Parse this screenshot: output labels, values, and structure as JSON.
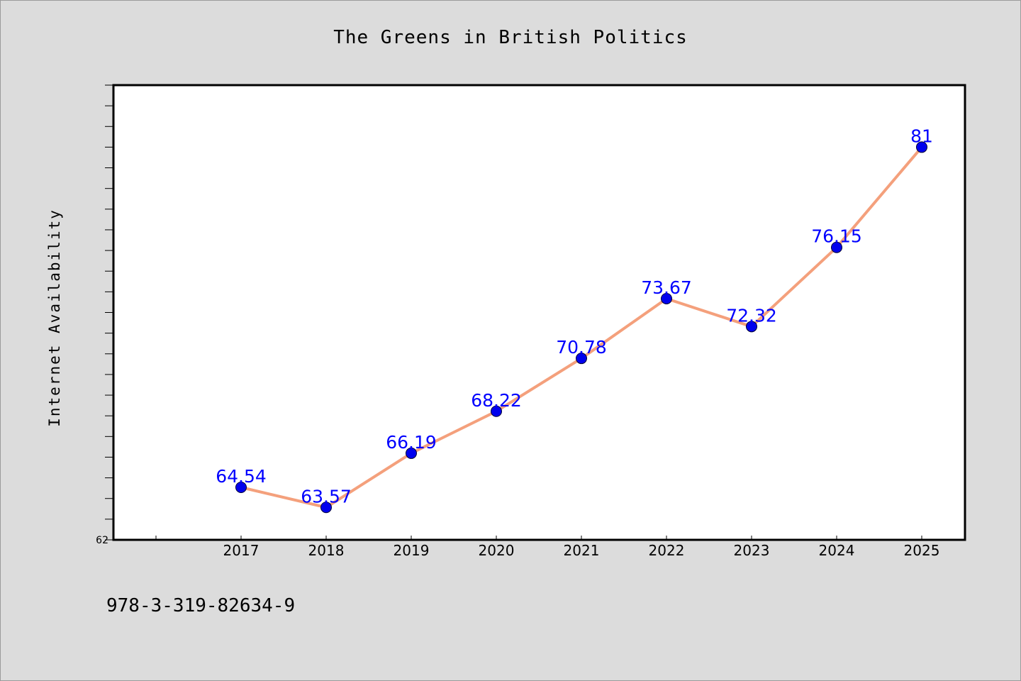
{
  "chart_data": {
    "type": "line",
    "title": "The Greens in British Politics",
    "ylabel": "Internet Availability",
    "xlabel": "",
    "categories": [
      "2017",
      "2018",
      "2019",
      "2020",
      "2021",
      "2022",
      "2023",
      "2024",
      "2025"
    ],
    "series": [
      {
        "values": [
          64.54,
          63.57,
          66.19,
          68.22,
          70.78,
          73.67,
          72.32,
          76.15,
          81
        ]
      }
    ],
    "data_labels": [
      "64.54",
      "63.57",
      "66.19",
      "68.22",
      "70.78",
      "73.67",
      "72.32",
      "76.15",
      "81"
    ],
    "ylim": [
      62,
      84
    ],
    "y_tick_labels": [
      "62"
    ],
    "grid": false,
    "legend": "none",
    "colors": {
      "line": "#f4a07c",
      "marker": "#0000ee",
      "label": "#0000ff",
      "background": "#dcdcdc",
      "plot": "#ffffff"
    }
  },
  "footer": {
    "isbn": "978-3-319-82634-9"
  }
}
